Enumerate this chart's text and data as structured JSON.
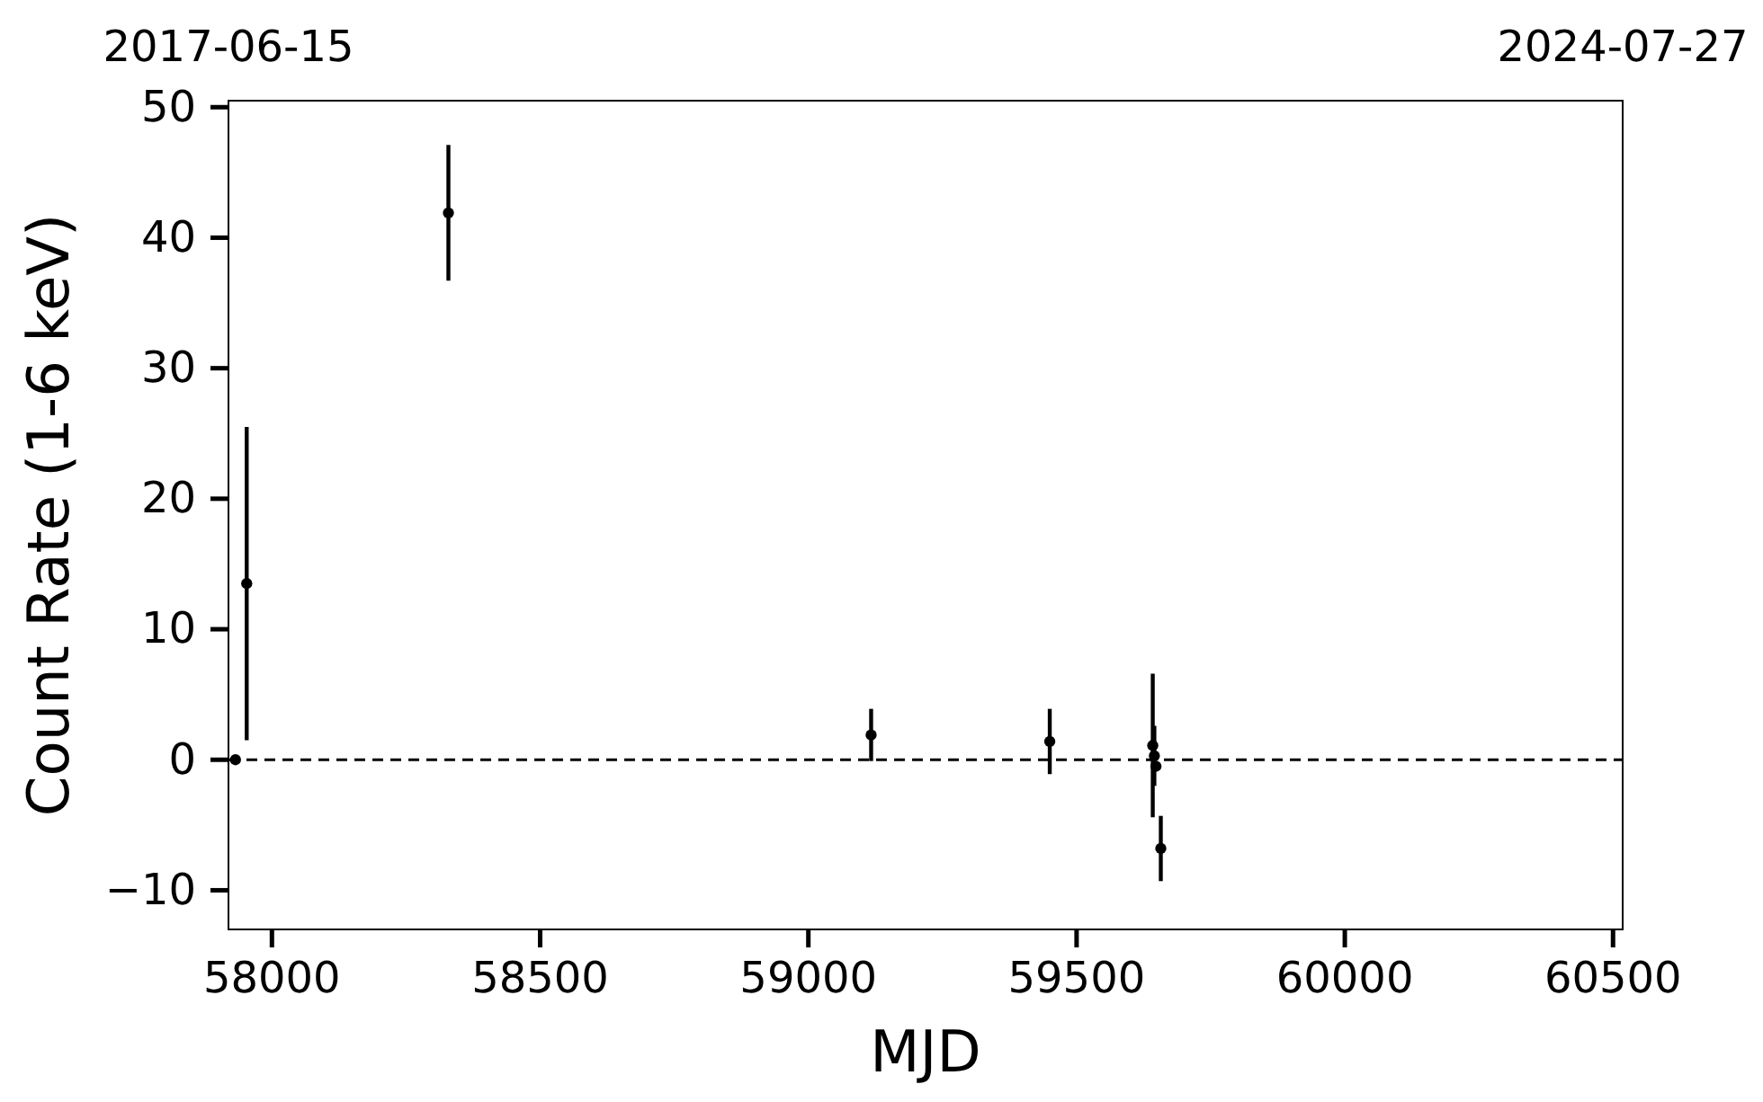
{
  "chart_data": {
    "type": "scatter",
    "xlabel": "MJD",
    "ylabel": "Count Rate (1-6 keV)",
    "x": [
      57932,
      57953,
      58329,
      59117,
      59450,
      59642,
      59645,
      59648,
      59657
    ],
    "values": [
      0,
      13.5,
      41.9,
      1.9,
      1.4,
      1.1,
      0.3,
      -0.5,
      -6.8
    ],
    "errors": [
      null,
      12,
      5.2,
      2,
      2.5,
      5.5,
      2.3,
      null,
      2.5
    ],
    "color": "#000000",
    "marker": "circle",
    "xlim": [
      57919,
      60518
    ],
    "xticks": [
      58000,
      58500,
      59000,
      59500,
      60000,
      60500
    ],
    "ylim": [
      -13,
      50.5
    ],
    "yticks": [
      -10,
      0,
      10,
      20,
      30,
      40,
      50
    ],
    "x2lim": [
      "2017-06-15",
      "2024-07-27"
    ],
    "x2ticks": [
      "2017-06-15",
      "2024-07-27"
    ],
    "ref_lines": [
      {
        "axis": "y",
        "value": 0,
        "color": "#000000",
        "line_style": "dashed"
      }
    ],
    "grid": false
  }
}
